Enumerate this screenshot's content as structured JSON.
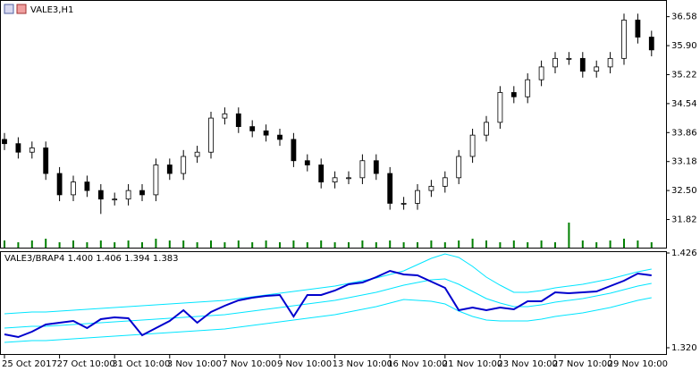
{
  "chart_data": [
    {
      "type": "candlestick",
      "title": "VALE3,H1",
      "categories": [
        "25 Oct 2017",
        null,
        null,
        null,
        "27 Oct 10:00",
        null,
        null,
        null,
        "31 Oct 10:00",
        null,
        null,
        null,
        "3 Nov 10:00",
        null,
        null,
        null,
        "7 Nov 10:00",
        null,
        null,
        null,
        "9 Nov 10:00",
        null,
        null,
        null,
        "13 Nov 10:00",
        null,
        null,
        null,
        "16 Nov 10:00",
        null,
        null,
        null,
        "21 Nov 10:00",
        null,
        null,
        null,
        "23 Nov 10:00",
        null,
        null,
        null,
        "27 Nov 10:00",
        null,
        null,
        null,
        "29 Nov 10:00",
        null,
        null,
        null
      ],
      "open": [
        33.7,
        33.6,
        33.4,
        33.5,
        32.9,
        32.4,
        32.7,
        32.5,
        32.3,
        32.3,
        32.5,
        32.4,
        33.1,
        32.9,
        33.3,
        33.4,
        34.2,
        34.3,
        34.0,
        33.9,
        33.8,
        33.7,
        33.2,
        33.1,
        32.7,
        32.8,
        32.8,
        33.2,
        32.9,
        32.2,
        32.2,
        32.5,
        32.6,
        32.8,
        33.3,
        33.8,
        34.1,
        34.8,
        34.7,
        35.1,
        35.4,
        35.6,
        35.6,
        35.3,
        35.4,
        35.6,
        36.5,
        36.1
      ],
      "high": [
        33.85,
        33.75,
        33.65,
        33.65,
        33.05,
        32.85,
        32.85,
        32.65,
        32.45,
        32.65,
        32.65,
        33.25,
        33.25,
        33.45,
        33.55,
        34.35,
        34.45,
        34.45,
        34.15,
        34.05,
        33.95,
        33.85,
        33.35,
        33.25,
        32.95,
        32.95,
        33.35,
        33.35,
        33.05,
        32.35,
        32.65,
        32.75,
        32.95,
        33.45,
        33.95,
        34.25,
        34.95,
        34.95,
        35.25,
        35.55,
        35.75,
        35.75,
        35.75,
        35.55,
        35.75,
        36.65,
        36.65,
        36.25
      ],
      "low": [
        33.45,
        33.25,
        33.25,
        32.75,
        32.25,
        32.25,
        32.35,
        31.95,
        32.15,
        32.15,
        32.25,
        32.25,
        32.75,
        32.75,
        33.15,
        33.25,
        34.05,
        33.85,
        33.75,
        33.65,
        33.55,
        33.05,
        32.95,
        32.55,
        32.55,
        32.65,
        32.65,
        32.75,
        32.05,
        32.05,
        32.05,
        32.35,
        32.45,
        32.65,
        33.15,
        33.65,
        33.95,
        34.55,
        34.55,
        34.95,
        35.25,
        35.45,
        35.15,
        35.15,
        35.25,
        35.45,
        35.95,
        35.65
      ],
      "close": [
        33.6,
        33.4,
        33.5,
        32.9,
        32.4,
        32.7,
        32.5,
        32.3,
        32.3,
        32.5,
        32.4,
        33.1,
        32.9,
        33.3,
        33.4,
        34.2,
        34.3,
        34.0,
        33.9,
        33.8,
        33.7,
        33.2,
        33.1,
        32.7,
        32.8,
        32.8,
        33.2,
        32.9,
        32.2,
        32.2,
        32.5,
        32.6,
        32.8,
        33.3,
        33.8,
        34.1,
        34.8,
        34.7,
        35.1,
        35.4,
        35.6,
        35.6,
        35.3,
        35.4,
        35.6,
        36.5,
        36.1,
        35.8
      ],
      "volume": [
        4,
        3,
        4,
        5,
        3,
        4,
        3,
        4,
        3,
        4,
        3,
        5,
        4,
        4,
        3,
        4,
        3,
        4,
        3,
        4,
        3,
        4,
        3,
        4,
        3,
        3,
        4,
        3,
        4,
        3,
        3,
        4,
        3,
        4,
        5,
        4,
        3,
        4,
        3,
        4,
        3,
        14,
        4,
        3,
        4,
        5,
        4,
        3
      ],
      "volume_color": "#008000",
      "ylim": [
        31.16,
        36.95
      ],
      "vlim": [
        0,
        15
      ],
      "yticks": [
        36.58,
        {
          "value": 35.9,
          "label": "35.90"
        },
        35.22,
        34.54,
        33.86,
        33.18,
        {
          "value": 32.5,
          "label": "32.50"
        },
        31.82
      ]
    },
    {
      "type": "line",
      "title": "VALE3/BRAP4 1.400 1.406 1.394 1.383",
      "series": [
        {
          "color": "#00e5ff",
          "values": [
            1.358,
            1.359,
            1.36,
            1.36,
            1.361,
            1.362,
            1.363,
            1.364,
            1.365,
            1.366,
            1.367,
            1.368,
            1.369,
            1.37,
            1.371,
            1.372,
            1.373,
            1.375,
            1.377,
            1.379,
            1.381,
            1.383,
            1.385,
            1.387,
            1.389,
            1.392,
            1.395,
            1.398,
            1.402,
            1.406,
            1.413,
            1.42,
            1.425,
            1.421,
            1.411,
            1.399,
            1.39,
            1.382,
            1.382,
            1.384,
            1.387,
            1.389,
            1.391,
            1.394,
            1.397,
            1.401,
            1.405,
            1.408
          ]
        },
        {
          "color": "#00e5ff",
          "values": [
            1.342,
            1.343,
            1.344,
            1.344,
            1.345,
            1.346,
            1.347,
            1.348,
            1.349,
            1.35,
            1.351,
            1.352,
            1.353,
            1.354,
            1.355,
            1.356,
            1.357,
            1.359,
            1.361,
            1.363,
            1.365,
            1.367,
            1.369,
            1.371,
            1.373,
            1.376,
            1.379,
            1.382,
            1.386,
            1.39,
            1.393,
            1.396,
            1.397,
            1.391,
            1.383,
            1.375,
            1.37,
            1.366,
            1.366,
            1.368,
            1.371,
            1.373,
            1.375,
            1.378,
            1.381,
            1.385,
            1.389,
            1.392
          ]
        },
        {
          "color": "#00e5ff",
          "values": [
            1.326,
            1.327,
            1.328,
            1.328,
            1.329,
            1.33,
            1.331,
            1.332,
            1.333,
            1.334,
            1.335,
            1.336,
            1.337,
            1.338,
            1.339,
            1.34,
            1.341,
            1.343,
            1.345,
            1.347,
            1.349,
            1.351,
            1.353,
            1.355,
            1.357,
            1.36,
            1.363,
            1.366,
            1.37,
            1.374,
            1.373,
            1.372,
            1.369,
            1.361,
            1.355,
            1.351,
            1.35,
            1.35,
            1.35,
            1.352,
            1.355,
            1.357,
            1.359,
            1.362,
            1.365,
            1.369,
            1.373,
            1.376
          ]
        },
        {
          "color": "#0000cd",
          "values": [
            1.335,
            1.332,
            1.338,
            1.346,
            1.348,
            1.35,
            1.342,
            1.352,
            1.354,
            1.353,
            1.334,
            1.342,
            1.35,
            1.362,
            1.348,
            1.36,
            1.367,
            1.373,
            1.376,
            1.378,
            1.379,
            1.355,
            1.379,
            1.379,
            1.384,
            1.391,
            1.393,
            1.399,
            1.406,
            1.402,
            1.401,
            1.394,
            1.387,
            1.362,
            1.365,
            1.362,
            1.365,
            1.363,
            1.372,
            1.372,
            1.382,
            1.381,
            1.382,
            1.383,
            1.389,
            1.395,
            1.403,
            1.401
          ]
        }
      ],
      "ylim": [
        1.313,
        1.427
      ],
      "yticks": [
        1.426,
        {
          "value": 1.32,
          "label": "1.320"
        }
      ]
    }
  ]
}
